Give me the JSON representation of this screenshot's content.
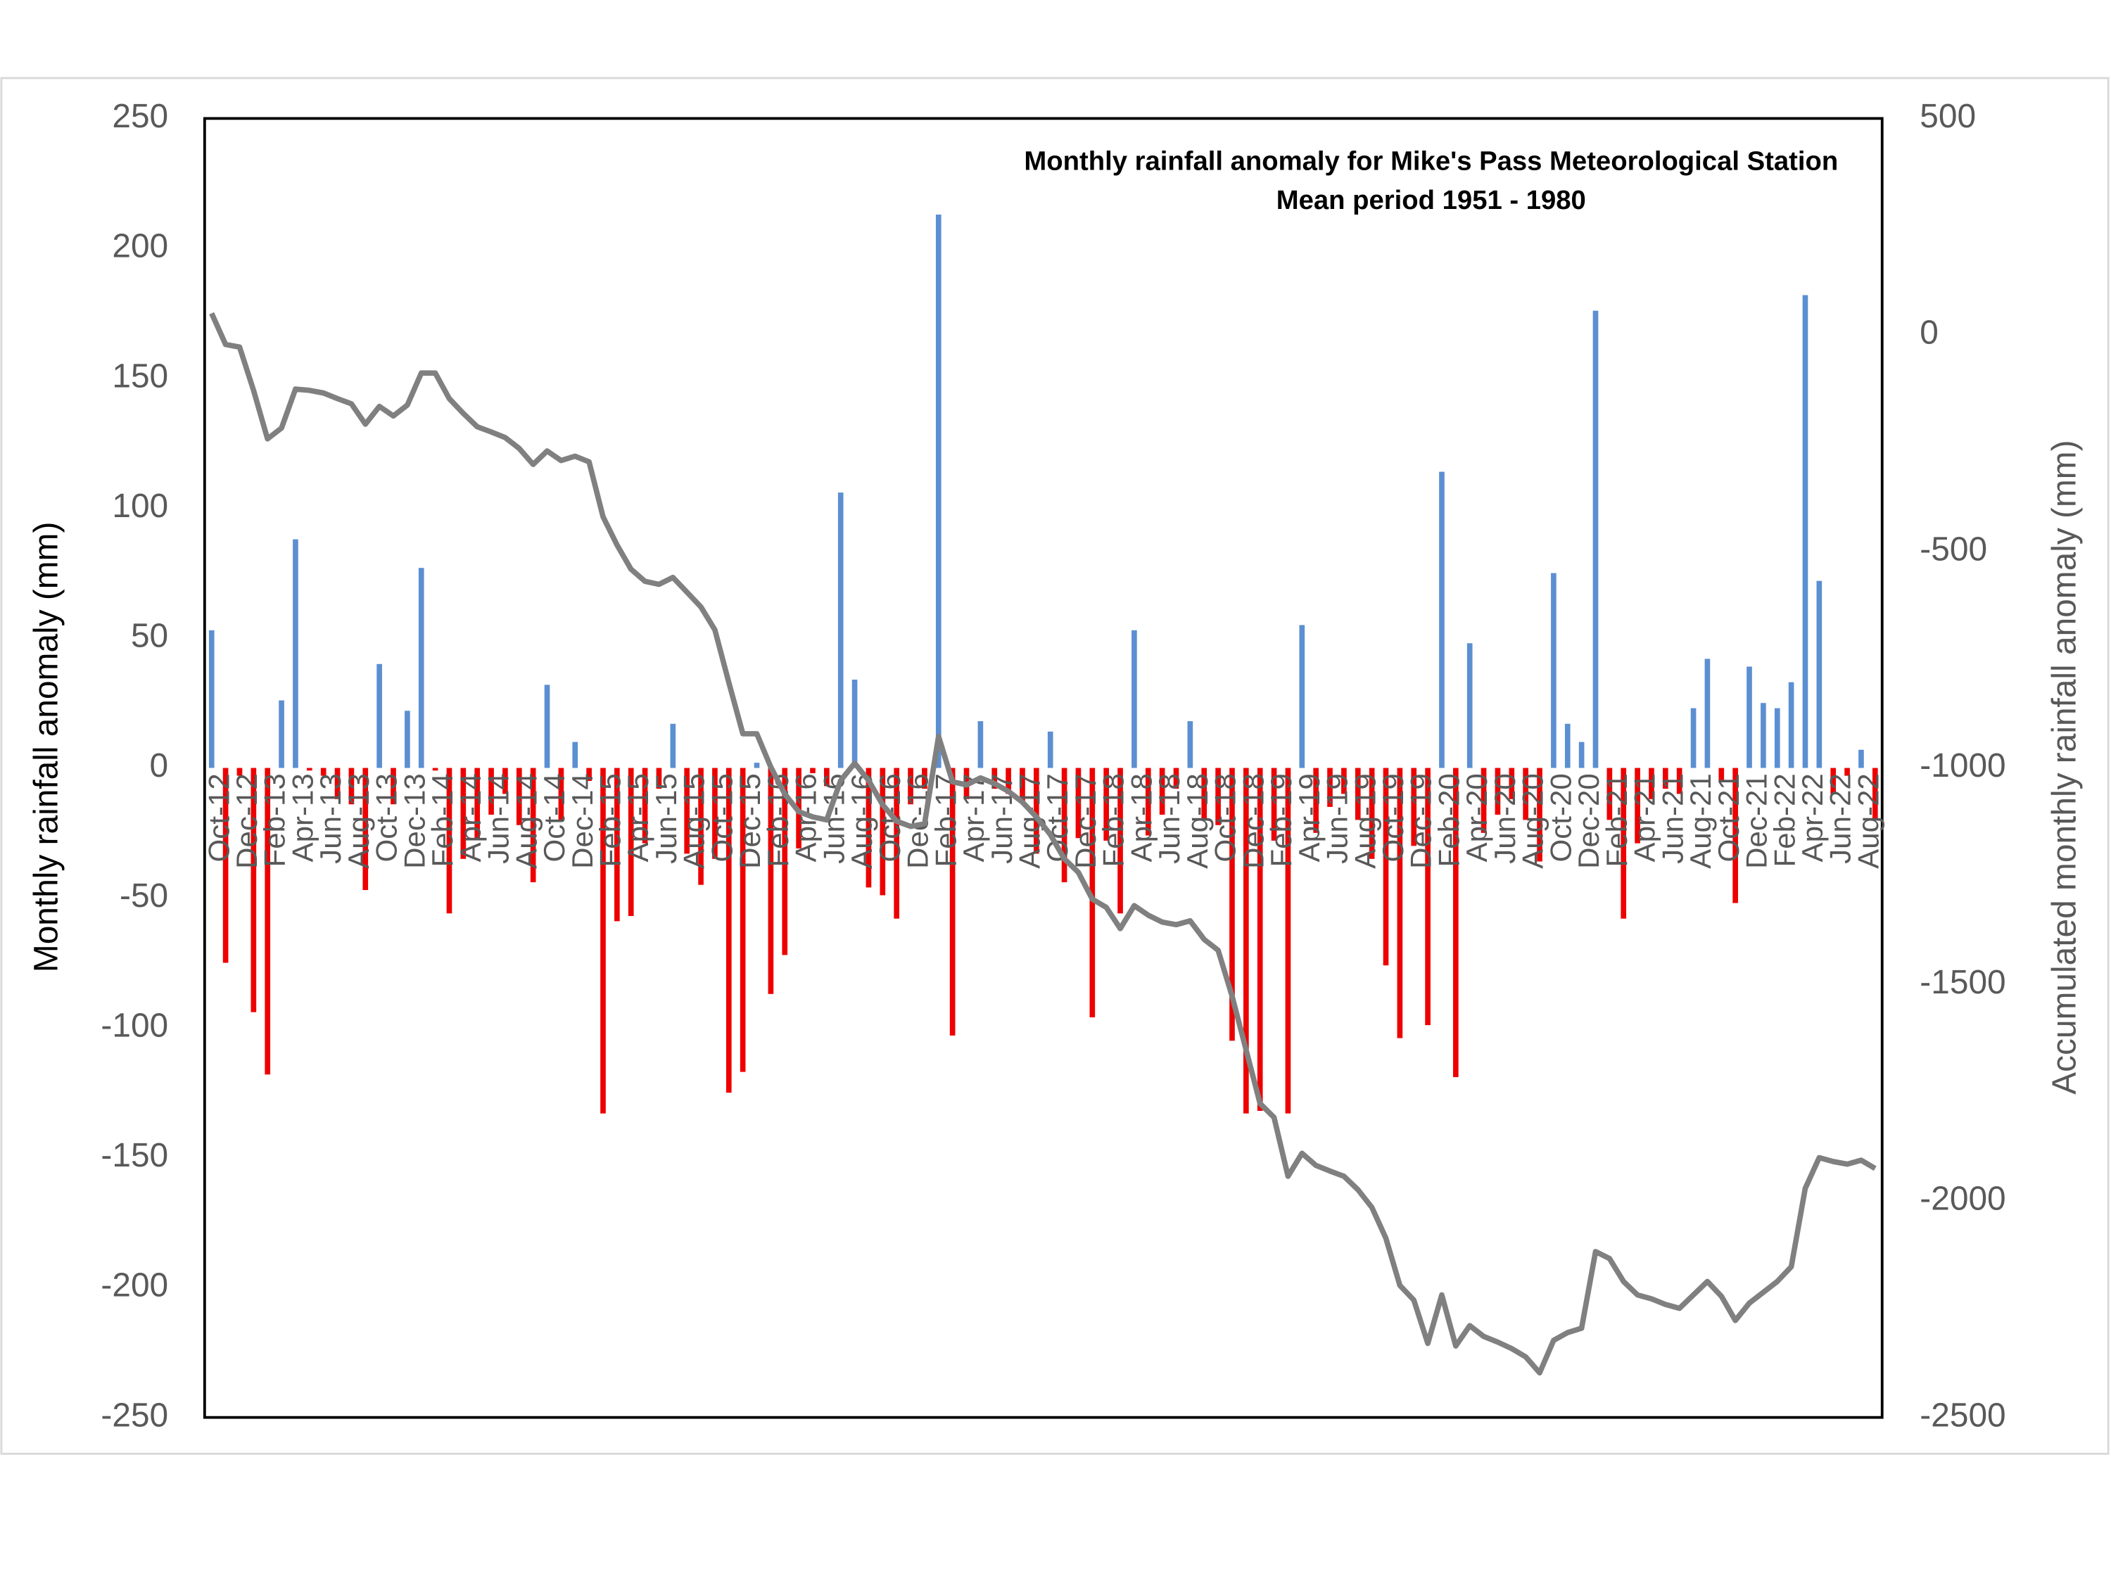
{
  "chart_data": {
    "type": "bar_line",
    "title": "Monthly rainfall anomaly for Mike's Pass Meteorological Station",
    "subtitle": "Mean period 1951 - 1980",
    "y_label": "Monthly rainfall anomaly (mm)",
    "y2_label": "Accumulated monthly rainfall anomaly (mm)",
    "categories": [
      "Oct-12",
      null,
      "Dec-12",
      null,
      "Feb-13",
      null,
      "Apr-13",
      null,
      "Jun-13",
      null,
      "Aug-13",
      null,
      "Oct-13",
      null,
      "Dec-13",
      null,
      "Feb-14",
      null,
      "Apr-14",
      null,
      "Jun-14",
      null,
      "Aug-14",
      null,
      "Oct-14",
      null,
      "Dec-14",
      null,
      "Feb-15",
      null,
      "Apr-15",
      null,
      "Jun-15",
      null,
      "Aug-15",
      null,
      "Oct-15",
      null,
      "Dec-15",
      null,
      "Feb-16",
      null,
      "Apr-16",
      null,
      "Jun-16",
      null,
      "Aug-16",
      null,
      "Oct-16",
      null,
      "Dec-16",
      null,
      "Feb-17",
      null,
      "Apr-17",
      null,
      "Jun-17",
      null,
      "Aug-17",
      null,
      "Oct-17",
      null,
      "Dec-17",
      null,
      "Feb-18",
      null,
      "Apr-18",
      null,
      "Jun-18",
      null,
      "Aug-18",
      null,
      "Oct-18",
      null,
      "Dec-18",
      null,
      "Feb-19",
      null,
      "Apr-19",
      null,
      "Jun-19",
      null,
      "Aug-19",
      null,
      "Oct-19",
      null,
      "Dec-19",
      null,
      "Feb-20",
      null,
      "Apr-20",
      null,
      "Jun-20",
      null,
      "Aug-20",
      null,
      "Oct-20",
      null,
      "Dec-20",
      null,
      "Feb-21",
      null,
      "Apr-21",
      null,
      "Jun-21",
      null,
      "Aug-21",
      null,
      "Oct-21",
      null,
      "Dec-21",
      null,
      "Feb-22",
      null,
      "Apr-22",
      null,
      "Jun-22",
      null,
      "Aug-22",
      null
    ],
    "series": [
      {
        "type": "bar",
        "color": "#5b8fd1",
        "negative_color": "#ee0000",
        "values": [
          53,
          -75,
          -3,
          -94,
          -118,
          26,
          88,
          -1,
          -3,
          -12,
          -14,
          -47,
          40,
          -14,
          22,
          77,
          -1,
          -56,
          -35,
          -27,
          -18,
          -10,
          -22,
          -44,
          32,
          -20,
          10,
          -5,
          -133,
          -59,
          -57,
          -29,
          -8,
          17,
          -33,
          -45,
          -35,
          -125,
          -117,
          2,
          -87,
          -72,
          -31,
          -2,
          -7,
          106,
          34,
          -46,
          -49,
          -58,
          -14,
          -8,
          213,
          -103,
          -12,
          18,
          -8,
          -10,
          -13,
          -33,
          14,
          -44,
          -27,
          -96,
          -28,
          -56,
          53,
          -26,
          -18,
          -8,
          18,
          -20,
          -22,
          -105,
          -133,
          -132,
          -28,
          -133,
          55,
          -25,
          -15,
          -10,
          -20,
          -35,
          -76,
          -104,
          -30,
          -99,
          114,
          -119,
          48,
          -25,
          -18,
          -12,
          -20,
          -36,
          75,
          17,
          10,
          176,
          -20,
          -58,
          -29,
          -12,
          -8,
          -10,
          23,
          42,
          -5,
          -52,
          39,
          25,
          23,
          33,
          182,
          72,
          -10,
          -3,
          7,
          -20
        ]
      },
      {
        "type": "line",
        "color": "#808080",
        "axis": "y2",
        "values": [
          50,
          -22,
          -28,
          -128,
          -240,
          -215,
          -125,
          -128,
          -134,
          -147,
          -159,
          -206,
          -165,
          -187,
          -162,
          -88,
          -88,
          -147,
          -181,
          -212,
          -224,
          -237,
          -262,
          -299,
          -268,
          -290,
          -280,
          -293,
          -420,
          -485,
          -541,
          -569,
          -576,
          -560,
          -594,
          -628,
          -681,
          -803,
          -921,
          -921,
          -998,
          -1060,
          -1101,
          -1113,
          -1120,
          -1029,
          -989,
          -1029,
          -1085,
          -1123,
          -1135,
          -1129,
          -927,
          -1032,
          -1039,
          -1023,
          -1036,
          -1054,
          -1079,
          -1113,
          -1154,
          -1210,
          -1241,
          -1303,
          -1322,
          -1371,
          -1318,
          -1340,
          -1356,
          -1362,
          -1353,
          -1396,
          -1421,
          -1527,
          -1651,
          -1775,
          -1807,
          -1943,
          -1890,
          -1918,
          -1931,
          -1943,
          -1974,
          -2015,
          -2086,
          -2195,
          -2229,
          -2329,
          -2217,
          -2335,
          -2288,
          -2313,
          -2326,
          -2341,
          -2360,
          -2397,
          -2322,
          -2304,
          -2294,
          -2117,
          -2133,
          -2186,
          -2217,
          -2226,
          -2239,
          -2248,
          -2217,
          -2186,
          -2220,
          -2276,
          -2236,
          -2211,
          -2186,
          -2152,
          -1971,
          -1900,
          -1909,
          -1915,
          -1906,
          -1925
        ]
      }
    ],
    "ylim": [
      -250,
      250
    ],
    "yticks": [
      -250,
      -200,
      -150,
      -100,
      -50,
      0,
      50,
      100,
      150,
      200,
      250
    ],
    "y2lim": [
      -2500,
      500
    ],
    "y2ticks": [
      -2500,
      -2000,
      -1500,
      -1000,
      -500,
      0,
      500
    ],
    "grid": false
  }
}
